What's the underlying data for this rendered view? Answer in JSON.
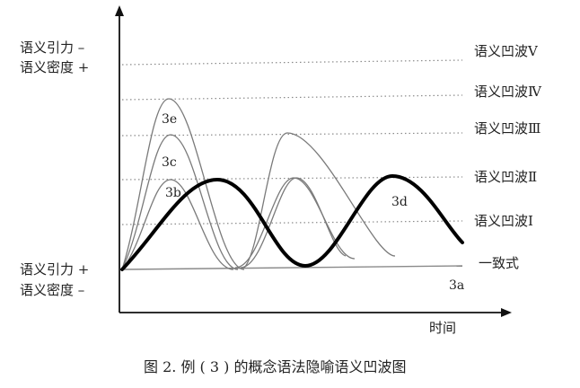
{
  "axes": {
    "y_top_label_line1": "语义引力 –",
    "y_top_label_line2": "语义密度 +",
    "y_bottom_label_line1": "语义引力 +",
    "y_bottom_label_line2": "语义密度 –",
    "x_label": "时间"
  },
  "levels": [
    {
      "key": "consistency",
      "label": "一致式"
    },
    {
      "key": "wave_I",
      "label": "语义凹波Ⅰ"
    },
    {
      "key": "wave_II",
      "label": "语义凹波Ⅱ"
    },
    {
      "key": "wave_III",
      "label": "语义凹波Ⅲ"
    },
    {
      "key": "wave_IV",
      "label": "语义凹波Ⅳ"
    },
    {
      "key": "wave_V",
      "label": "语义凹波Ⅴ"
    }
  ],
  "curves": [
    {
      "key": "3a",
      "tag": "3a"
    },
    {
      "key": "3b",
      "tag": "3b"
    },
    {
      "key": "3c",
      "tag": "3c"
    },
    {
      "key": "3e",
      "tag": "3e"
    },
    {
      "key": "3d",
      "tag": "3d"
    }
  ],
  "caption": "图 2. 例 ( 3 ) 的概念语法隐喻语义凹波图",
  "colors": {
    "axis": "#111111",
    "guide": "#888888",
    "thin_curve": "#777777",
    "bold_curve": "#000000"
  }
}
